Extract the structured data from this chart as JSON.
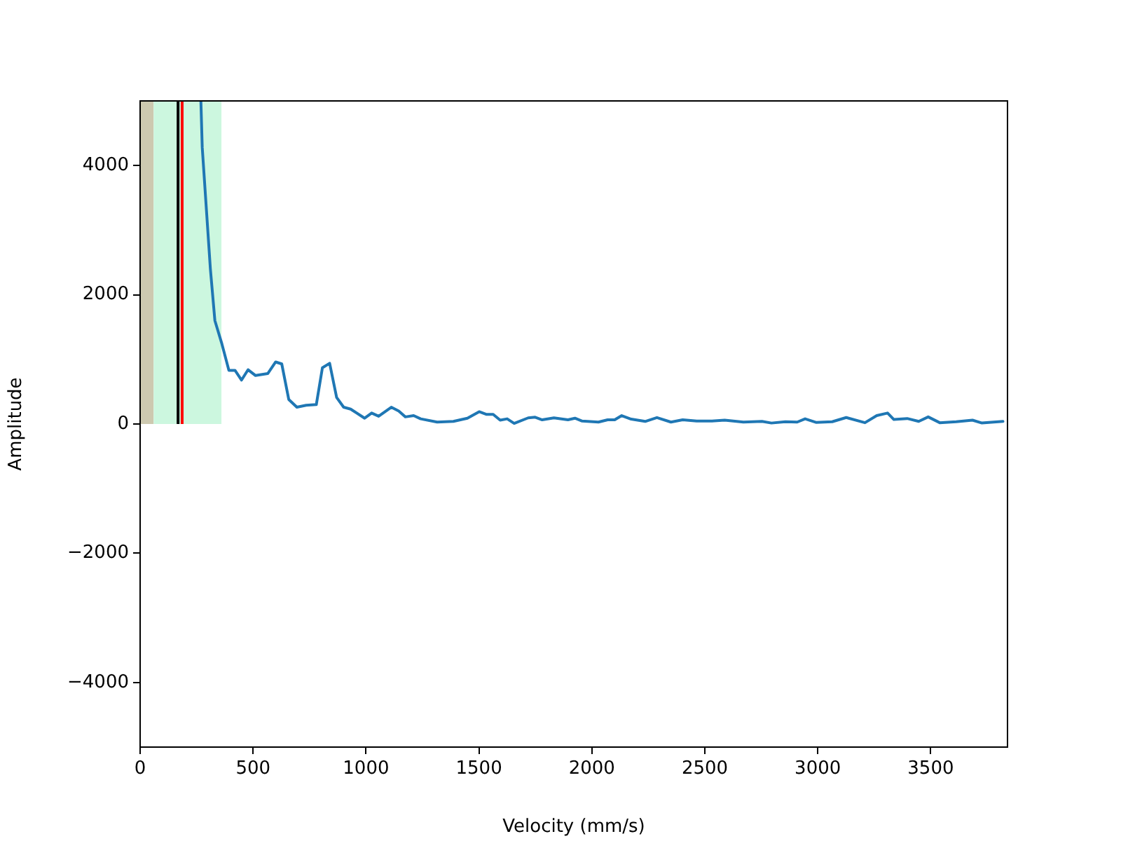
{
  "chart_data": {
    "type": "line",
    "xlabel": "Velocity (mm/s)",
    "ylabel": "Amplitude",
    "xlim": [
      0,
      3840
    ],
    "ylim": [
      -5000,
      5000
    ],
    "xticks": [
      0,
      500,
      1000,
      1500,
      2000,
      2500,
      3000,
      3500
    ],
    "yticks": [
      {
        "value": -4000,
        "label": "−4000"
      },
      {
        "value": -2000,
        "label": "−2000"
      },
      0,
      2000,
      4000
    ],
    "grid": false,
    "legend": false,
    "marker": "none",
    "line_style": "solid",
    "bands": [
      {
        "axis": "x",
        "from": 0,
        "to": 60,
        "color": "#cdc9b0"
      },
      {
        "axis": "x",
        "from": 60,
        "to": 360,
        "color": "#ccf7df"
      }
    ],
    "ref_lines": [
      {
        "axis": "x",
        "value": 168,
        "color": "#000000"
      },
      {
        "axis": "x",
        "value": 186,
        "color": "#ff0000"
      }
    ],
    "series": [
      {
        "color": "#1f77b4",
        "x": [
          269,
          275,
          311,
          331,
          362,
          393,
          420,
          449,
          478,
          511,
          565,
          600,
          627,
          658,
          694,
          735,
          780,
          807,
          839,
          870,
          901,
          932,
          994,
          1025,
          1056,
          1112,
          1145,
          1174,
          1211,
          1242,
          1315,
          1387,
          1449,
          1501,
          1532,
          1563,
          1594,
          1625,
          1656,
          1718,
          1749,
          1780,
          1832,
          1894,
          1925,
          1957,
          2029,
          2070,
          2101,
          2132,
          2174,
          2236,
          2288,
          2350,
          2402,
          2464,
          2530,
          2588,
          2671,
          2753,
          2795,
          2857,
          2909,
          2944,
          2992,
          3064,
          3126,
          3209,
          3261,
          3309,
          3337,
          3396,
          3447,
          3489,
          3540,
          3613,
          3685,
          3727,
          3820
        ],
        "values": [
          5000,
          4280,
          2400,
          1600,
          1240,
          830,
          830,
          680,
          840,
          750,
          780,
          960,
          930,
          380,
          260,
          290,
          300,
          870,
          940,
          410,
          260,
          230,
          90,
          170,
          120,
          260,
          200,
          110,
          130,
          80,
          30,
          40,
          90,
          190,
          150,
          150,
          60,
          80,
          10,
          95,
          105,
          65,
          95,
          65,
          90,
          45,
          30,
          65,
          65,
          130,
          75,
          40,
          100,
          30,
          65,
          45,
          45,
          60,
          30,
          40,
          15,
          35,
          30,
          80,
          25,
          35,
          100,
          20,
          130,
          170,
          70,
          85,
          40,
          110,
          20,
          35,
          60,
          15,
          40
        ]
      }
    ]
  }
}
